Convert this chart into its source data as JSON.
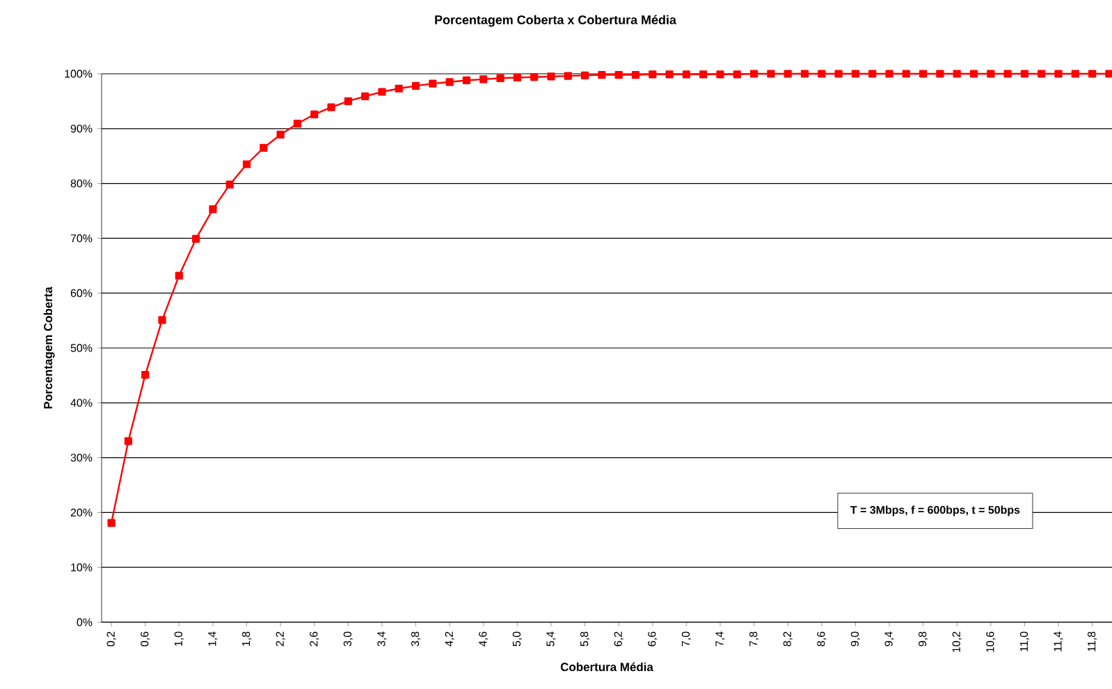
{
  "chart_data": {
    "type": "line",
    "title": "Porcentagem Coberta x Cobertura Média",
    "xlabel": "Cobertura Média",
    "ylabel": "Porcentagem Coberta",
    "categories": [
      "0,2",
      null,
      "0,6",
      null,
      "1,0",
      null,
      "1,4",
      null,
      "1,8",
      null,
      "2,2",
      null,
      "2,6",
      null,
      "3,0",
      null,
      "3,4",
      null,
      "3,8",
      null,
      "4,2",
      null,
      "4,6",
      null,
      "5,0",
      null,
      "5,4",
      null,
      "5,8",
      null,
      "6,2",
      null,
      "6,6",
      null,
      "7,0",
      null,
      "7,4",
      null,
      "7,8",
      null,
      "8,2",
      null,
      "8,6",
      null,
      "9,0",
      null,
      "9,4",
      null,
      "9,8",
      null,
      "10,2",
      null,
      "10,6",
      null,
      "11,0",
      null,
      "11,4",
      null,
      "11,8",
      null
    ],
    "series": [
      {
        "color": "#ff0000",
        "values": [
          18.1,
          33.0,
          45.1,
          55.1,
          63.2,
          69.9,
          75.3,
          79.8,
          83.5,
          86.5,
          88.9,
          90.9,
          92.6,
          93.9,
          95.0,
          95.9,
          96.7,
          97.3,
          97.8,
          98.2,
          98.5,
          98.8,
          99.0,
          99.2,
          99.3,
          99.4,
          99.5,
          99.6,
          99.7,
          99.8,
          99.8,
          99.8,
          99.9,
          99.9,
          99.9,
          99.9,
          99.9,
          99.9,
          100,
          100,
          100,
          100,
          100,
          100,
          100,
          100,
          100,
          100,
          100,
          100,
          100,
          100,
          100,
          100,
          100,
          100,
          100,
          100,
          100,
          100
        ]
      }
    ],
    "ylim": [
      0,
      100
    ],
    "yticks": [
      {
        "value": 0,
        "label": "0%"
      },
      {
        "value": 10,
        "label": "10%"
      },
      {
        "value": 20,
        "label": "20%"
      },
      {
        "value": 30,
        "label": "30%"
      },
      {
        "value": 40,
        "label": "40%"
      },
      {
        "value": 50,
        "label": "50%"
      },
      {
        "value": 60,
        "label": "60%"
      },
      {
        "value": 70,
        "label": "70%"
      },
      {
        "value": 80,
        "label": "80%"
      },
      {
        "value": 90,
        "label": "90%"
      },
      {
        "value": 100,
        "label": "100%"
      }
    ],
    "grid": "y",
    "marker": "square",
    "line_style": "solid",
    "annotations": [
      "T = 3Mbps, f = 600bps, t = 50bps"
    ]
  }
}
